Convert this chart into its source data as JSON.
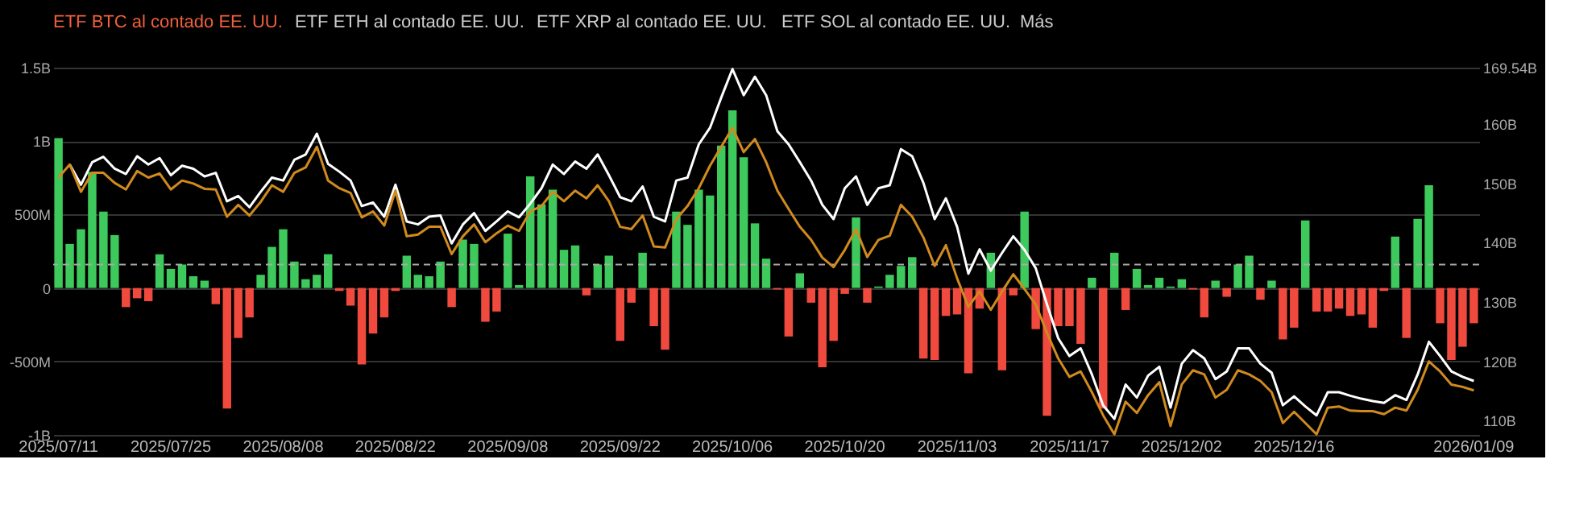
{
  "chart_data": {
    "type": "bar",
    "annotations": [
      "ETF BTC al contado EE. UU.",
      "ETF ETH al contado EE. UU.",
      "ETF XRP al contado EE. UU.",
      "ETF SOL al contado EE. UU.",
      "Más"
    ],
    "categories": [
      "2025/07/11",
      null,
      null,
      null,
      null,
      null,
      null,
      null,
      null,
      null,
      "2025/07/25",
      null,
      null,
      null,
      null,
      null,
      null,
      null,
      null,
      null,
      "2025/08/08",
      null,
      null,
      null,
      null,
      null,
      null,
      null,
      null,
      null,
      "2025/08/22",
      null,
      null,
      null,
      null,
      null,
      null,
      null,
      null,
      null,
      "2025/09/08",
      null,
      null,
      null,
      null,
      null,
      null,
      null,
      null,
      null,
      "2025/09/22",
      null,
      null,
      null,
      null,
      null,
      null,
      null,
      null,
      null,
      "2025/10/06",
      null,
      null,
      null,
      null,
      null,
      null,
      null,
      null,
      null,
      "2025/10/20",
      null,
      null,
      null,
      null,
      null,
      null,
      null,
      null,
      null,
      "2025/11/03",
      null,
      null,
      null,
      null,
      null,
      null,
      null,
      null,
      null,
      "2025/11/17",
      null,
      null,
      null,
      null,
      null,
      null,
      null,
      null,
      null,
      "2025/12/02",
      null,
      null,
      null,
      null,
      null,
      null,
      null,
      null,
      null,
      "2025/12/16",
      null,
      null,
      null,
      null,
      null,
      null,
      null,
      null,
      null,
      null,
      null,
      null,
      null,
      null,
      null,
      "2026/01/09"
    ],
    "values": [
      1020000000,
      300000000,
      400000000,
      790000000,
      520000000,
      360000000,
      -130000000,
      -70000000,
      -90000000,
      230000000,
      130000000,
      160000000,
      80000000,
      50000000,
      -110000000,
      -820000000,
      -340000000,
      -200000000,
      90000000,
      280000000,
      400000000,
      180000000,
      60000000,
      90000000,
      230000000,
      -20000000,
      -120000000,
      -520000000,
      -310000000,
      -200000000,
      -20000000,
      220000000,
      90000000,
      80000000,
      180000000,
      -130000000,
      330000000,
      300000000,
      -230000000,
      -160000000,
      370000000,
      20000000,
      760000000,
      570000000,
      670000000,
      260000000,
      290000000,
      -50000000,
      160000000,
      220000000,
      -360000000,
      -100000000,
      240000000,
      -260000000,
      -420000000,
      520000000,
      430000000,
      670000000,
      630000000,
      970000000,
      1210000000,
      890000000,
      440000000,
      200000000,
      -10000000,
      -330000000,
      100000000,
      -100000000,
      -540000000,
      -360000000,
      -40000000,
      480000000,
      -100000000,
      10000000,
      90000000,
      150000000,
      210000000,
      -480000000,
      -490000000,
      -190000000,
      -180000000,
      -580000000,
      -140000000,
      240000000,
      -560000000,
      -50000000,
      520000000,
      -280000000,
      -870000000,
      -260000000,
      -260000000,
      -380000000,
      70000000,
      -820000000,
      240000000,
      -150000000,
      130000000,
      20000000,
      70000000,
      10000000,
      60000000,
      -10000000,
      -200000000,
      50000000,
      -60000000,
      160000000,
      220000000,
      -80000000,
      50000000,
      -350000000,
      -270000000,
      460000000,
      -160000000,
      -160000000,
      -140000000,
      -190000000,
      -180000000,
      -270000000,
      -20000000,
      350000000,
      -340000000,
      470000000,
      700000000,
      -240000000,
      -490000000,
      -400000000,
      -240000000
    ],
    "colors": [
      "#3ec95c",
      "#3ec95c",
      "#3ec95c",
      "#3ec95c",
      "#3ec95c",
      "#3ec95c",
      "#f04a3e",
      "#f04a3e",
      "#f04a3e",
      "#3ec95c",
      "#3ec95c",
      "#3ec95c",
      "#3ec95c",
      "#3ec95c",
      "#f04a3e",
      "#f04a3e",
      "#f04a3e",
      "#f04a3e",
      "#3ec95c",
      "#3ec95c",
      "#3ec95c",
      "#3ec95c",
      "#3ec95c",
      "#3ec95c",
      "#3ec95c",
      "#f04a3e",
      "#f04a3e",
      "#f04a3e",
      "#f04a3e",
      "#f04a3e",
      "#f04a3e",
      "#3ec95c",
      "#3ec95c",
      "#3ec95c",
      "#3ec95c",
      "#f04a3e",
      "#3ec95c",
      "#3ec95c",
      "#f04a3e",
      "#f04a3e",
      "#3ec95c",
      "#3ec95c",
      "#3ec95c",
      "#3ec95c",
      "#3ec95c",
      "#3ec95c",
      "#3ec95c",
      "#f04a3e",
      "#3ec95c",
      "#3ec95c",
      "#f04a3e",
      "#f04a3e",
      "#3ec95c",
      "#f04a3e",
      "#f04a3e",
      "#3ec95c",
      "#3ec95c",
      "#3ec95c",
      "#3ec95c",
      "#3ec95c",
      "#3ec95c",
      "#3ec95c",
      "#3ec95c",
      "#3ec95c",
      "#f04a3e",
      "#f04a3e",
      "#3ec95c",
      "#f04a3e",
      "#f04a3e",
      "#f04a3e",
      "#f04a3e",
      "#3ec95c",
      "#f04a3e",
      "#3ec95c",
      "#3ec95c",
      "#3ec95c",
      "#3ec95c",
      "#f04a3e",
      "#f04a3e",
      "#f04a3e",
      "#f04a3e",
      "#f04a3e",
      "#f04a3e",
      "#3ec95c",
      "#f04a3e",
      "#f04a3e",
      "#3ec95c",
      "#f04a3e",
      "#f04a3e",
      "#f04a3e",
      "#f04a3e",
      "#f04a3e",
      "#3ec95c",
      "#f04a3e",
      "#3ec95c",
      "#f04a3e",
      "#3ec95c",
      "#3ec95c",
      "#3ec95c",
      "#3ec95c",
      "#3ec95c",
      "#f04a3e",
      "#f04a3e",
      "#3ec95c",
      "#f04a3e",
      "#3ec95c",
      "#3ec95c",
      "#f04a3e",
      "#3ec95c",
      "#f04a3e",
      "#f04a3e",
      "#3ec95c",
      "#f04a3e",
      "#f04a3e",
      "#f04a3e",
      "#f04a3e",
      "#f04a3e",
      "#f04a3e",
      "#f04a3e",
      "#3ec95c",
      "#f04a3e",
      "#3ec95c",
      "#3ec95c",
      "#f04a3e",
      "#f04a3e",
      "#f04a3e",
      "#f04a3e"
    ],
    "series": [
      {
        "type": "line",
        "axis": "y2",
        "color": "#ffffff",
        "values": [
          null,
          153.2,
          149.8,
          153.6,
          154.5,
          152.5,
          151.6,
          154.6,
          153.2,
          154.3,
          151.4,
          153.0,
          152.5,
          151.2,
          151.8,
          147.0,
          147.9,
          146.0,
          148.6,
          151.0,
          150.5,
          154.0,
          154.9,
          158.4,
          153.3,
          152.0,
          150.5,
          146.2,
          146.8,
          144.4,
          149.8,
          143.6,
          143.1,
          144.4,
          144.6,
          139.9,
          143.1,
          145.0,
          142.0,
          143.6,
          145.3,
          144.3,
          146.6,
          149.2,
          153.2,
          151.6,
          153.7,
          152.5,
          154.9,
          151.4,
          147.7,
          147.0,
          149.5,
          144.4,
          143.6,
          150.5,
          151.0,
          156.6,
          159.4,
          164.5,
          169.3,
          164.9,
          168.0,
          164.9,
          158.8,
          156.6,
          153.6,
          150.5,
          146.4,
          144.0,
          149.2,
          151.2,
          146.4,
          149.2,
          149.7,
          155.8,
          154.6,
          150.1,
          144.0,
          147.5,
          142.7,
          134.8,
          138.9,
          135.3,
          138.3,
          141.1,
          138.8,
          135.7,
          129.6,
          123.9,
          120.9,
          122.2,
          117.8,
          112.6,
          110.3,
          116.1,
          113.9,
          117.6,
          119.1,
          112.2,
          119.6,
          121.9,
          120.5,
          117.0,
          118.3,
          122.2,
          122.2,
          119.6,
          118.1,
          112.6,
          114.1,
          112.4,
          110.9,
          114.8,
          114.8,
          114.2,
          113.7,
          113.3,
          113.0,
          114.3,
          113.5,
          117.8,
          123.3,
          120.9,
          118.3,
          117.4,
          116.7
        ]
      },
      {
        "type": "line",
        "axis": "y2",
        "color": "#d08a1e",
        "values": [
          151.0,
          153.2,
          148.6,
          151.8,
          151.8,
          150.1,
          149.0,
          152.1,
          151.0,
          151.7,
          149.0,
          150.5,
          150.0,
          149.1,
          149.0,
          144.4,
          146.4,
          144.6,
          146.9,
          149.7,
          148.6,
          151.8,
          152.7,
          156.2,
          150.5,
          149.2,
          148.4,
          144.3,
          145.3,
          142.9,
          148.8,
          141.1,
          141.4,
          142.7,
          142.7,
          138.1,
          141.1,
          143.1,
          140.1,
          141.6,
          142.9,
          142.0,
          145.3,
          146.2,
          148.6,
          147.0,
          148.8,
          147.5,
          149.7,
          147.0,
          142.7,
          142.3,
          144.6,
          139.4,
          139.2,
          144.0,
          146.2,
          149.2,
          153.0,
          156.2,
          159.4,
          155.3,
          157.5,
          153.6,
          148.8,
          145.7,
          142.7,
          140.5,
          137.5,
          135.9,
          138.8,
          142.3,
          137.6,
          140.5,
          141.2,
          146.4,
          144.4,
          140.9,
          136.1,
          139.6,
          134.0,
          129.2,
          131.8,
          128.7,
          131.8,
          134.7,
          132.2,
          129.6,
          124.8,
          120.5,
          117.4,
          118.3,
          114.8,
          110.9,
          107.7,
          113.2,
          111.3,
          114.3,
          116.5,
          109.1,
          116.1,
          118.5,
          117.8,
          113.9,
          115.2,
          118.5,
          117.8,
          116.7,
          114.8,
          109.6,
          111.5,
          109.6,
          107.7,
          112.2,
          112.4,
          111.7,
          111.6,
          111.6,
          111.1,
          112.2,
          111.7,
          115.2,
          120.0,
          118.3,
          116.1,
          115.7,
          115.1
        ]
      }
    ],
    "ylim": [
      -1000000000,
      1500000000
    ],
    "yticks": [
      {
        "value": 1500000000,
        "label": "1.5B"
      },
      {
        "value": 1000000000,
        "label": "1B"
      },
      {
        "value": 500000000,
        "label": "500M"
      },
      0,
      {
        "value": -500000000,
        "label": "-500M"
      },
      {
        "value": -1000000000,
        "label": "-1B"
      }
    ],
    "y2lim": [
      107.6,
      169.54
    ],
    "y2ticks": [
      {
        "value": 110,
        "label": "110B"
      },
      {
        "value": 120,
        "label": "120B"
      },
      {
        "value": 130,
        "label": "130B"
      },
      {
        "value": 140,
        "label": "140B"
      },
      {
        "value": 150,
        "label": "150B"
      },
      {
        "value": 160,
        "label": "160B"
      },
      {
        "value": 169.54,
        "label": "169.54B"
      }
    ],
    "ref_lines": [
      {
        "axis": "y",
        "value": 160000000,
        "color": "#aaaaaa",
        "line_style": "dashed"
      }
    ],
    "grid": "y"
  }
}
